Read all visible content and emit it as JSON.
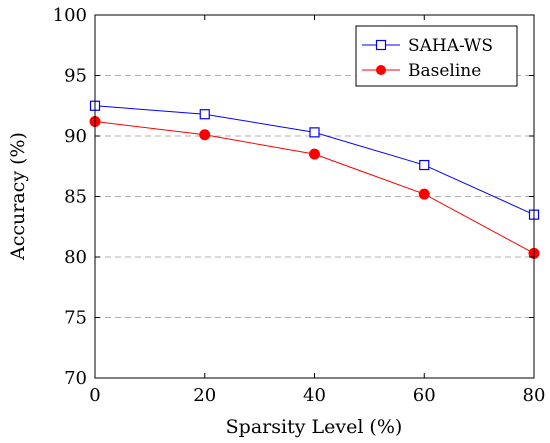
{
  "chart_data": {
    "type": "line",
    "xlabel": "Sparsity Level (%)",
    "ylabel": "Accuracy (%)",
    "x": [
      0,
      20,
      40,
      60,
      80
    ],
    "xlim": [
      0,
      80
    ],
    "ylim": [
      70,
      100
    ],
    "xticks": [
      "0",
      "20",
      "40",
      "60",
      "80"
    ],
    "yticks": [
      "70",
      "75",
      "80",
      "85",
      "90",
      "95",
      "100"
    ],
    "grid": "horizontal dashed",
    "legend_position": "top-right",
    "series": [
      {
        "name": "SAHA-WS",
        "values": [
          92.5,
          91.8,
          90.3,
          87.6,
          83.5
        ],
        "color": "#0000ff",
        "marker": "square-open"
      },
      {
        "name": "Baseline",
        "values": [
          91.2,
          90.1,
          88.5,
          85.2,
          80.3
        ],
        "color": "#ff0000",
        "marker": "circle-filled"
      }
    ]
  }
}
